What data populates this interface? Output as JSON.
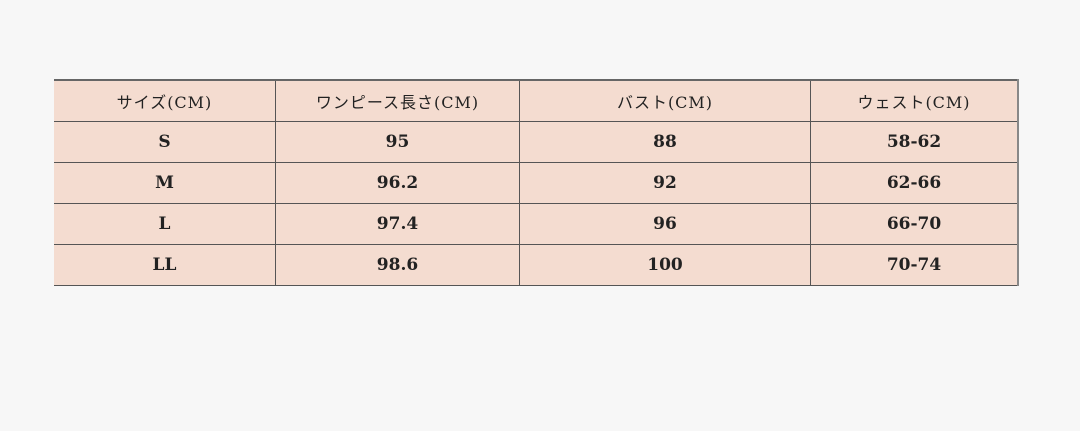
{
  "table": {
    "headers": [
      "サイズ(CM)",
      "ワンピース長さ(CM)",
      "バスト(CM)",
      "ウェスト(CM)"
    ],
    "rows": [
      [
        "S",
        "95",
        "88",
        "58-62"
      ],
      [
        "M",
        "96.2",
        "92",
        "62-66"
      ],
      [
        "L",
        "97.4",
        "96",
        "66-70"
      ],
      [
        "LL",
        "98.6",
        "100",
        "70-74"
      ]
    ]
  },
  "colors": {
    "cell_background": "#f4dcd0",
    "page_background": "#f7f7f7"
  }
}
